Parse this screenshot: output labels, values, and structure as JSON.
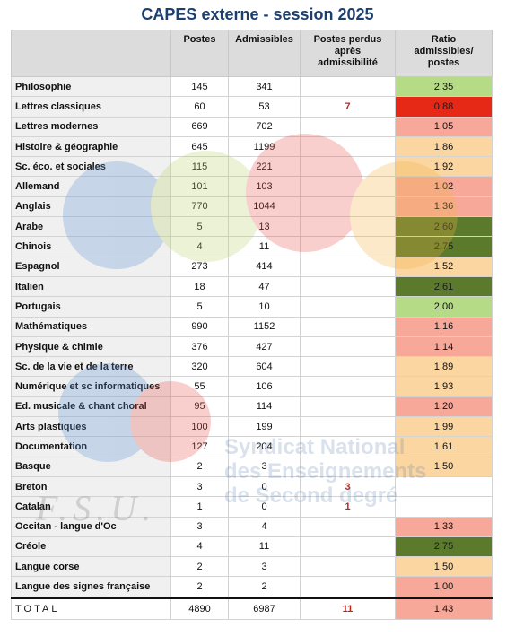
{
  "title": "CAPES externe - session 2025",
  "headers": [
    "",
    "Postes",
    "Admissibles",
    "Postes perdus après admissibilité",
    "Ratio admissibles/ postes"
  ],
  "rows": [
    {
      "name": "Philosophie",
      "postes": "145",
      "admissibles": "341",
      "perdus": "",
      "ratio": "2,35",
      "color": "#b6db86"
    },
    {
      "name": "Lettres classiques",
      "postes": "60",
      "admissibles": "53",
      "perdus": "7",
      "ratio": "0,88",
      "color": "#e62916"
    },
    {
      "name": "Lettres modernes",
      "postes": "669",
      "admissibles": "702",
      "perdus": "",
      "ratio": "1,05",
      "color": "#f8a899"
    },
    {
      "name": "Histoire & géographie",
      "postes": "645",
      "admissibles": "1199",
      "perdus": "",
      "ratio": "1,86",
      "color": "#fbd6a1"
    },
    {
      "name": "Sc. éco. et sociales",
      "postes": "115",
      "admissibles": "221",
      "perdus": "",
      "ratio": "1,92",
      "color": "#fbd6a1"
    },
    {
      "name": "Allemand",
      "postes": "101",
      "admissibles": "103",
      "perdus": "",
      "ratio": "1,02",
      "color": "#f8a899"
    },
    {
      "name": "Anglais",
      "postes": "770",
      "admissibles": "1044",
      "perdus": "",
      "ratio": "1,36",
      "color": "#f8a899"
    },
    {
      "name": "Arabe",
      "postes": "5",
      "admissibles": "13",
      "perdus": "",
      "ratio": "2,60",
      "color": "#5b7a2c"
    },
    {
      "name": "Chinois",
      "postes": "4",
      "admissibles": "11",
      "perdus": "",
      "ratio": "2,75",
      "color": "#5b7a2c"
    },
    {
      "name": "Espagnol",
      "postes": "273",
      "admissibles": "414",
      "perdus": "",
      "ratio": "1,52",
      "color": "#fbd6a1"
    },
    {
      "name": "Italien",
      "postes": "18",
      "admissibles": "47",
      "perdus": "",
      "ratio": "2,61",
      "color": "#5b7a2c"
    },
    {
      "name": "Portugais",
      "postes": "5",
      "admissibles": "10",
      "perdus": "",
      "ratio": "2,00",
      "color": "#b6db86"
    },
    {
      "name": "Mathématiques",
      "postes": "990",
      "admissibles": "1152",
      "perdus": "",
      "ratio": "1,16",
      "color": "#f8a899"
    },
    {
      "name": "Physique & chimie",
      "postes": "376",
      "admissibles": "427",
      "perdus": "",
      "ratio": "1,14",
      "color": "#f8a899"
    },
    {
      "name": "Sc. de la vie et de la terre",
      "postes": "320",
      "admissibles": "604",
      "perdus": "",
      "ratio": "1,89",
      "color": "#fbd6a1"
    },
    {
      "name": "Numérique et sc informatiques",
      "postes": "55",
      "admissibles": "106",
      "perdus": "",
      "ratio": "1,93",
      "color": "#fbd6a1"
    },
    {
      "name": "Ed. musicale & chant choral",
      "postes": "95",
      "admissibles": "114",
      "perdus": "",
      "ratio": "1,20",
      "color": "#f8a899"
    },
    {
      "name": "Arts plastiques",
      "postes": "100",
      "admissibles": "199",
      "perdus": "",
      "ratio": "1,99",
      "color": "#fbd6a1"
    },
    {
      "name": "Documentation",
      "postes": "127",
      "admissibles": "204",
      "perdus": "",
      "ratio": "1,61",
      "color": "#fbd6a1"
    },
    {
      "name": "Basque",
      "postes": "2",
      "admissibles": "3",
      "perdus": "",
      "ratio": "1,50",
      "color": "#fbd6a1"
    },
    {
      "name": "Breton",
      "postes": "3",
      "admissibles": "0",
      "perdus": "3",
      "ratio": "",
      "color": "#ffffff"
    },
    {
      "name": "Catalan",
      "postes": "1",
      "admissibles": "0",
      "perdus": "1",
      "ratio": "",
      "color": "#ffffff"
    },
    {
      "name": "Occitan - langue d'Oc",
      "postes": "3",
      "admissibles": "4",
      "perdus": "",
      "ratio": "1,33",
      "color": "#f8a899"
    },
    {
      "name": "Créole",
      "postes": "4",
      "admissibles": "11",
      "perdus": "",
      "ratio": "2,75",
      "color": "#5b7a2c"
    },
    {
      "name": "Langue corse",
      "postes": "2",
      "admissibles": "3",
      "perdus": "",
      "ratio": "1,50",
      "color": "#fbd6a1"
    },
    {
      "name": "Langue des signes française",
      "postes": "2",
      "admissibles": "2",
      "perdus": "",
      "ratio": "1,00",
      "color": "#f8a899"
    }
  ],
  "total": {
    "name": "TOTAL",
    "postes": "4890",
    "admissibles": "6987",
    "perdus": "11",
    "ratio": "1,43",
    "color": "#f8a899"
  },
  "watermark": {
    "logo": "snes",
    "line1": "Syndicat National",
    "line2": "des Enseignements",
    "line3": "de Second degré",
    "fsu": "F.S.U."
  }
}
